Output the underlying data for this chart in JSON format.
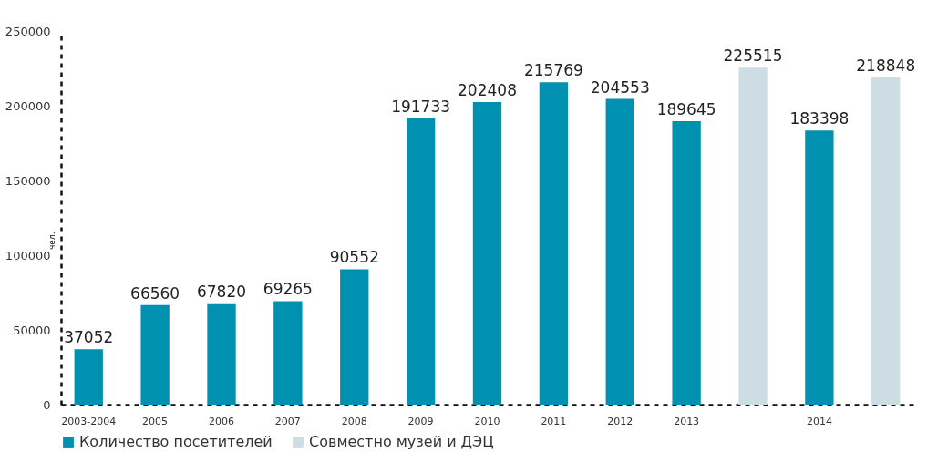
{
  "chart_data": {
    "type": "bar",
    "categories": [
      "2003-2004",
      "2005",
      "2006",
      "2007",
      "2008",
      "2009",
      "2010",
      "2011",
      "2012",
      "2013",
      null,
      "2014",
      null
    ],
    "series": [
      {
        "name": "Количество посетителей",
        "color": "#0090b0",
        "values": [
          37052,
          66560,
          67820,
          69265,
          90552,
          191733,
          202408,
          215769,
          204553,
          189645,
          null,
          183398,
          null
        ]
      },
      {
        "name": "Совместно музей и ДЭЦ",
        "color": "#cddde4",
        "values": [
          null,
          null,
          null,
          null,
          null,
          null,
          null,
          null,
          null,
          null,
          225515,
          null,
          218848
        ]
      }
    ],
    "ylabel": "чел.",
    "ylim": [
      0,
      250000
    ],
    "yticks": [
      0,
      50000,
      100000,
      150000,
      200000,
      250000
    ],
    "data_labels": true,
    "grid": false,
    "legend": "bottom"
  }
}
